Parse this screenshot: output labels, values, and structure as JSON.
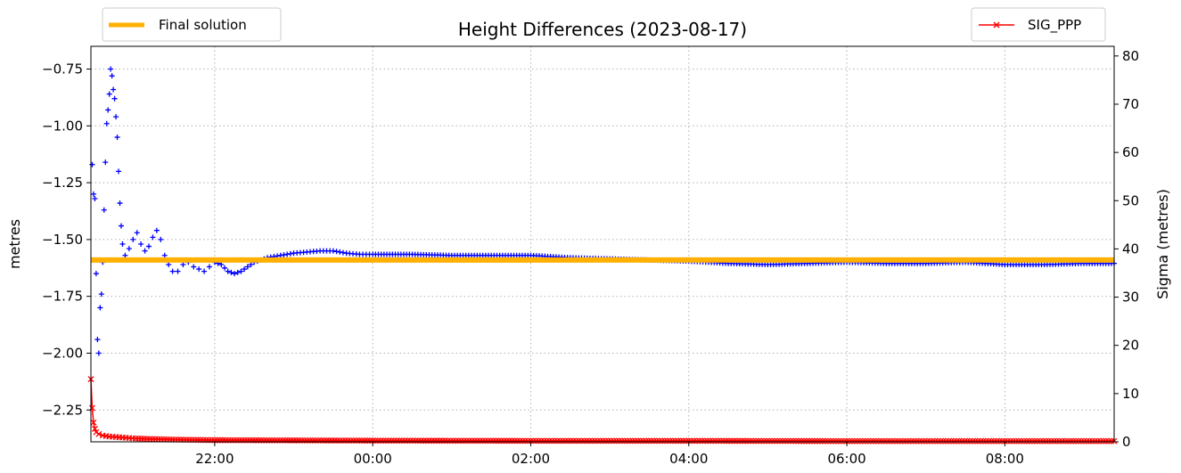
{
  "chart_data": {
    "type": "scatter",
    "title": "Height Differences (2023-08-17)",
    "ylabel": "metres",
    "ylabel_right": "Sigma (metres)",
    "ylim": [
      -2.39,
      -0.65
    ],
    "ylim_right": [
      0,
      82
    ],
    "xlim": [
      "20:26",
      "09:23"
    ],
    "x_tick_labels": [
      "22:00",
      "00:00",
      "02:00",
      "04:00",
      "06:00",
      "08:00"
    ],
    "x_tick_values": [
      "22:00",
      "00:00",
      "02:00",
      "04:00",
      "06:00",
      "08:00"
    ],
    "y_ticks": [
      -2.25,
      -2.0,
      -1.75,
      -1.5,
      -1.25,
      -1.0,
      -0.75
    ],
    "y_tick_labels": [
      "−2.25",
      "−2.00",
      "−1.75",
      "−1.50",
      "−1.25",
      "−1.00",
      "−0.75"
    ],
    "y_ticks_right": [
      0,
      10,
      20,
      30,
      40,
      50,
      60,
      70,
      80
    ],
    "y_tick_labels_right": [
      "0",
      "10",
      "20",
      "30",
      "40",
      "50",
      "60",
      "70",
      "80"
    ],
    "grid": true,
    "final_solution": -1.59,
    "series": [
      {
        "name": "",
        "axis": "left",
        "marker": "+",
        "color": "#0000ff",
        "points": [
          [
            "20:27",
            -1.17
          ],
          [
            "20:28",
            -1.3
          ],
          [
            "20:29",
            -1.32
          ],
          [
            "20:30",
            -1.65
          ],
          [
            "20:31",
            -1.94
          ],
          [
            "20:32",
            -2.0
          ],
          [
            "20:33",
            -1.8
          ],
          [
            "20:34",
            -1.74
          ],
          [
            "20:35",
            -1.6
          ],
          [
            "20:36",
            -1.37
          ],
          [
            "20:37",
            -1.16
          ],
          [
            "20:38",
            -0.99
          ],
          [
            "20:39",
            -0.93
          ],
          [
            "20:40",
            -0.86
          ],
          [
            "20:41",
            -0.75
          ],
          [
            "20:42",
            -0.78
          ],
          [
            "20:43",
            -0.84
          ],
          [
            "20:44",
            -0.88
          ],
          [
            "20:45",
            -0.96
          ],
          [
            "20:46",
            -1.05
          ],
          [
            "20:47",
            -1.2
          ],
          [
            "20:48",
            -1.34
          ],
          [
            "20:49",
            -1.44
          ],
          [
            "20:50",
            -1.52
          ],
          [
            "20:52",
            -1.57
          ],
          [
            "20:55",
            -1.54
          ],
          [
            "20:58",
            -1.5
          ],
          [
            "21:01",
            -1.47
          ],
          [
            "21:04",
            -1.52
          ],
          [
            "21:07",
            -1.55
          ],
          [
            "21:10",
            -1.53
          ],
          [
            "21:13",
            -1.49
          ],
          [
            "21:16",
            -1.46
          ],
          [
            "21:19",
            -1.5
          ],
          [
            "21:22",
            -1.57
          ],
          [
            "21:25",
            -1.61
          ],
          [
            "21:28",
            -1.64
          ],
          [
            "21:32",
            -1.64
          ],
          [
            "21:36",
            -1.61
          ],
          [
            "21:40",
            -1.6
          ],
          [
            "21:44",
            -1.62
          ],
          [
            "21:48",
            -1.63
          ],
          [
            "21:52",
            -1.64
          ],
          [
            "21:56",
            -1.62
          ],
          [
            "22:00",
            -1.6
          ],
          [
            "22:05",
            -1.61
          ],
          [
            "22:10",
            -1.64
          ],
          [
            "22:15",
            -1.65
          ],
          [
            "22:20",
            -1.64
          ],
          [
            "22:25",
            -1.62
          ],
          [
            "22:30",
            -1.6
          ],
          [
            "22:40",
            -1.58
          ],
          [
            "22:50",
            -1.57
          ],
          [
            "23:00",
            -1.56
          ],
          [
            "23:10",
            -1.555
          ],
          [
            "23:20",
            -1.55
          ],
          [
            "23:30",
            -1.55
          ],
          [
            "23:40",
            -1.56
          ],
          [
            "23:50",
            -1.565
          ],
          [
            "00:00",
            -1.565
          ],
          [
            "00:30",
            -1.565
          ],
          [
            "01:00",
            -1.57
          ],
          [
            "01:30",
            -1.57
          ],
          [
            "02:00",
            -1.57
          ],
          [
            "02:30",
            -1.58
          ],
          [
            "03:00",
            -1.585
          ],
          [
            "03:30",
            -1.59
          ],
          [
            "04:00",
            -1.595
          ],
          [
            "04:30",
            -1.605
          ],
          [
            "05:00",
            -1.61
          ],
          [
            "05:30",
            -1.605
          ],
          [
            "06:00",
            -1.6
          ],
          [
            "06:30",
            -1.605
          ],
          [
            "07:00",
            -1.605
          ],
          [
            "07:30",
            -1.6
          ],
          [
            "08:00",
            -1.61
          ],
          [
            "08:30",
            -1.61
          ],
          [
            "09:00",
            -1.605
          ],
          [
            "09:23",
            -1.605
          ]
        ]
      },
      {
        "name": "SIG_PPP",
        "axis": "right",
        "marker": "x",
        "color": "#ff0000",
        "points": [
          [
            "20:26",
            13.0
          ],
          [
            "20:27",
            7.0
          ],
          [
            "20:28",
            4.0
          ],
          [
            "20:29",
            2.7
          ],
          [
            "20:30",
            2.0
          ],
          [
            "20:32",
            1.6
          ],
          [
            "20:35",
            1.3
          ],
          [
            "20:40",
            1.1
          ],
          [
            "20:50",
            0.9
          ],
          [
            "21:00",
            0.7
          ],
          [
            "21:15",
            0.55
          ],
          [
            "21:30",
            0.45
          ],
          [
            "22:00",
            0.35
          ],
          [
            "23:00",
            0.3
          ],
          [
            "00:00",
            0.25
          ],
          [
            "02:00",
            0.2
          ],
          [
            "04:00",
            0.2
          ],
          [
            "06:00",
            0.15
          ],
          [
            "08:00",
            0.15
          ],
          [
            "09:23",
            0.15
          ]
        ]
      }
    ],
    "legend_left": "Final solution",
    "legend_right": "SIG_PPP",
    "colors": {
      "final_solution": "#ffb000",
      "sig": "#ff0000",
      "height": "#0000ff"
    }
  }
}
